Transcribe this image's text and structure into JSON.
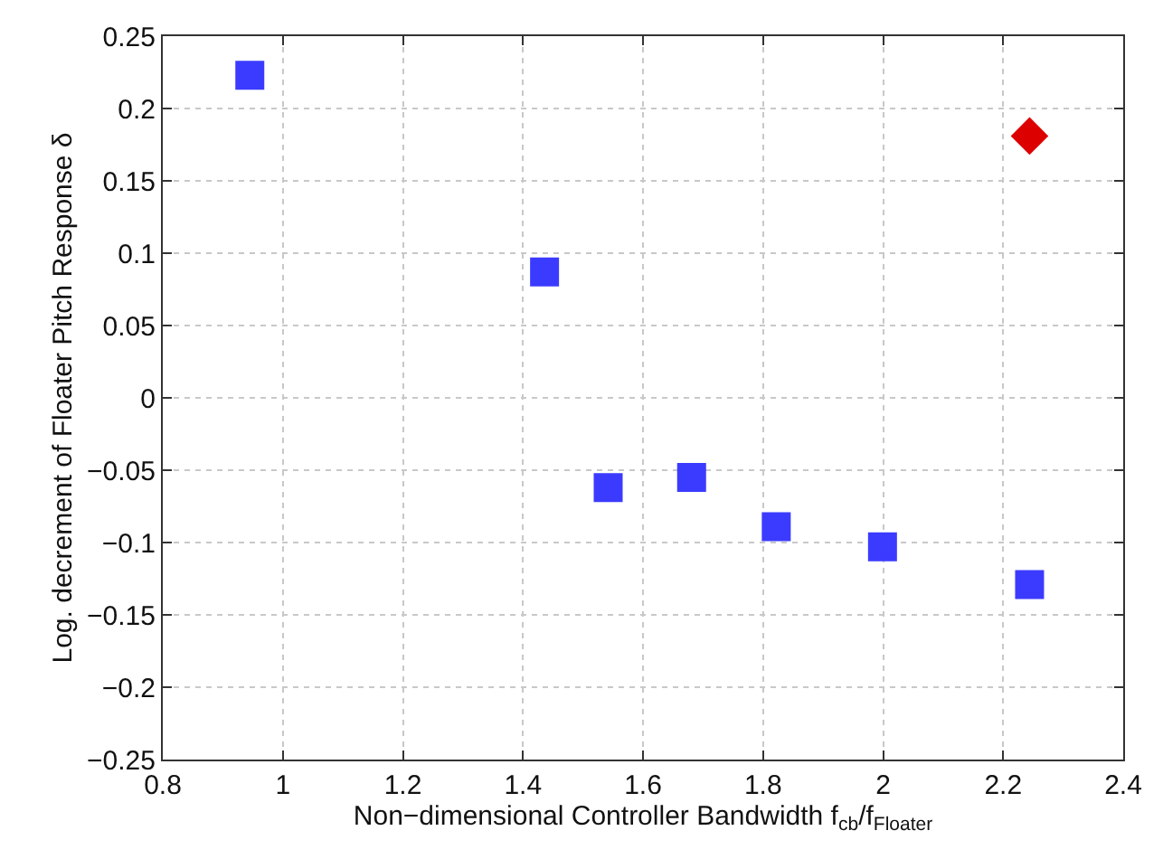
{
  "chart_data": {
    "type": "scatter",
    "xlabel": "Non−dimensional Controller Bandwidth f$_{cb}$/f$_{Floater}$",
    "ylabel": "Log. decrement of Floater Pitch Response δ",
    "series": [
      {
        "color": "#3b3bff",
        "marker": "square",
        "x": [
          0.945,
          1.436,
          1.542,
          1.681,
          1.822,
          1.999,
          2.244
        ],
        "values": [
          0.223,
          0.087,
          -0.062,
          -0.055,
          -0.089,
          -0.103,
          -0.129
        ]
      },
      {
        "color": "#dd0000",
        "marker": "diamond",
        "x": [
          2.244
        ],
        "values": [
          0.181
        ]
      }
    ],
    "xlim": [
      0.8,
      2.4
    ],
    "xticks": [
      0.8,
      1,
      1.2,
      1.4,
      1.6,
      1.8,
      2,
      2.2,
      2.4
    ],
    "ylim": [
      -0.25,
      0.25
    ],
    "yticks": [
      -0.25,
      -0.2,
      -0.15,
      -0.1,
      -0.05,
      0,
      0.05,
      0.1,
      0.15,
      0.2,
      0.25
    ],
    "grid": true
  }
}
